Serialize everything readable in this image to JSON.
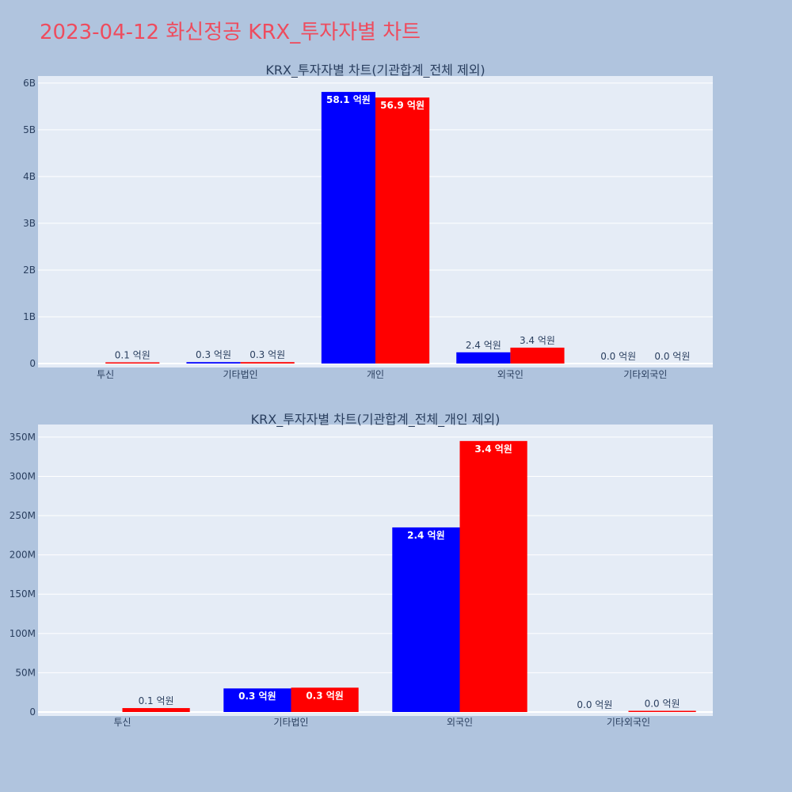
{
  "title": "2023-04-12 화신정공 KRX_투자자별 차트",
  "colors": {
    "background": "#b0c4de",
    "plot_bg": "#e5ecf6",
    "grid": "#ffffff",
    "title": "#ee4c5e",
    "text": "#2a3f5f",
    "series_blue": "#0000ff",
    "series_red": "#ff0000"
  },
  "chart_data": [
    {
      "type": "bar",
      "title": "KRX_투자자별 차트(기관합계_전체 제외)",
      "categories": [
        "투신",
        "기타법인",
        "개인",
        "외국인",
        "기타외국인"
      ],
      "series": [
        {
          "color": "#0000ff",
          "values": [
            0,
            30000000,
            5810000000,
            240000000,
            0
          ],
          "labels": [
            "",
            "0.3 억원",
            "58.1 억원",
            "2.4 억원",
            "0.0 억원"
          ]
        },
        {
          "color": "#ff0000",
          "values": [
            10000000,
            30000000,
            5690000000,
            340000000,
            0
          ],
          "labels": [
            "0.1 억원",
            "0.3 억원",
            "56.9 억원",
            "3.4 억원",
            "0.0 억원"
          ]
        }
      ],
      "ylim": [
        0,
        6150000000
      ],
      "yticks": [
        0,
        1000000000,
        2000000000,
        3000000000,
        4000000000,
        5000000000,
        6000000000
      ],
      "ytick_labels": [
        "0",
        "1B",
        "2B",
        "3B",
        "4B",
        "5B",
        "6B"
      ],
      "grid": true
    },
    {
      "type": "bar",
      "title": "KRX_투자자별 차트(기관합계_전체_개인 제외)",
      "categories": [
        "투신",
        "기타법인",
        "외국인",
        "기타외국인"
      ],
      "series": [
        {
          "color": "#0000ff",
          "values": [
            0,
            30000000,
            235000000,
            0
          ],
          "labels": [
            "",
            "0.3 억원",
            "2.4 억원",
            "0.0 억원"
          ]
        },
        {
          "color": "#ff0000",
          "values": [
            5000000,
            31000000,
            345000000,
            1000000
          ],
          "labels": [
            "0.1 억원",
            "0.3 억원",
            "3.4 억원",
            "0.0 억원"
          ]
        }
      ],
      "ylim": [
        0,
        366000000
      ],
      "yticks": [
        0,
        50000000,
        100000000,
        150000000,
        200000000,
        250000000,
        300000000,
        350000000
      ],
      "ytick_labels": [
        "0",
        "50M",
        "100M",
        "150M",
        "200M",
        "250M",
        "300M",
        "350M"
      ],
      "grid": true
    }
  ]
}
